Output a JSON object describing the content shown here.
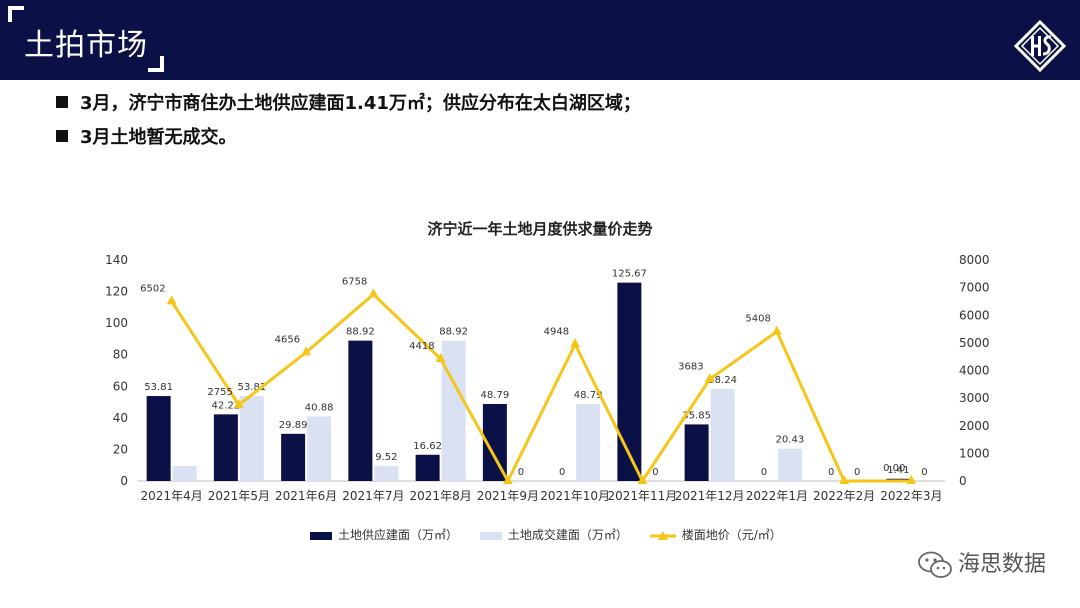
{
  "header": {
    "title": "土拍市场",
    "logo_icon": "hs-diamond-logo-icon"
  },
  "bullets": [
    "3月，济宁市商住办土地供应建面1.41万㎡；供应分布在太白湖区域；",
    "3月土地暂无成交。"
  ],
  "colors": {
    "header_bg": "#0b1146",
    "supply": "#0b1146",
    "deal": "#d9e1f2",
    "price": "#f5c518"
  },
  "chart_data": {
    "type": "bar",
    "title": "济宁近一年土地月度供求量价走势",
    "categories": [
      "2021年4月",
      "2021年5月",
      "2021年6月",
      "2021年7月",
      "2021年8月",
      "2021年9月",
      "2021年10月",
      "2021年11月",
      "2021年12月",
      "2022年1月",
      "2022年2月",
      "2022年3月"
    ],
    "series": [
      {
        "name": "土地供应建面（万㎡）",
        "kind": "bar",
        "axis": "left",
        "values": [
          53.81,
          42.22,
          29.89,
          88.92,
          16.62,
          48.79,
          0,
          125.67,
          35.85,
          0,
          0,
          1.41
        ],
        "labels": [
          "53.81",
          "42.22",
          "29.89",
          "88.92",
          "16.62",
          "48.79",
          "0",
          "125.67",
          "35.85",
          "0",
          "0",
          "1.41"
        ]
      },
      {
        "name": "土地成交建面（万㎡）",
        "kind": "bar",
        "axis": "left",
        "values": [
          9.5,
          53.81,
          40.88,
          9.52,
          88.92,
          0,
          48.79,
          0,
          58.24,
          20.43,
          0,
          0
        ],
        "labels": [
          "",
          "53.81",
          "40.88",
          "9.52",
          "88.92",
          "0",
          "48.79",
          "0",
          "58.24",
          "20.43",
          "0",
          "0"
        ]
      },
      {
        "name": "楼面地价（元/㎡）",
        "kind": "line",
        "axis": "right",
        "values": [
          6502,
          2755,
          4656,
          6758,
          4418,
          0,
          4948,
          0,
          3683,
          5408,
          0,
          0
        ],
        "labels": [
          "6502",
          "2755",
          "4656",
          "6758",
          "4418",
          "",
          "4948",
          "",
          "3683",
          "5408",
          "",
          "0.00"
        ]
      }
    ],
    "y_left": {
      "min": 0,
      "max": 140,
      "ticks": [
        0,
        20,
        40,
        60,
        80,
        100,
        120,
        140
      ]
    },
    "y_right": {
      "min": 0,
      "max": 8000,
      "ticks": [
        0,
        1000,
        2000,
        3000,
        4000,
        5000,
        6000,
        7000,
        8000
      ]
    },
    "legend": "bottom"
  },
  "watermark": {
    "text": "海思数据",
    "icon": "wechat-icon"
  }
}
